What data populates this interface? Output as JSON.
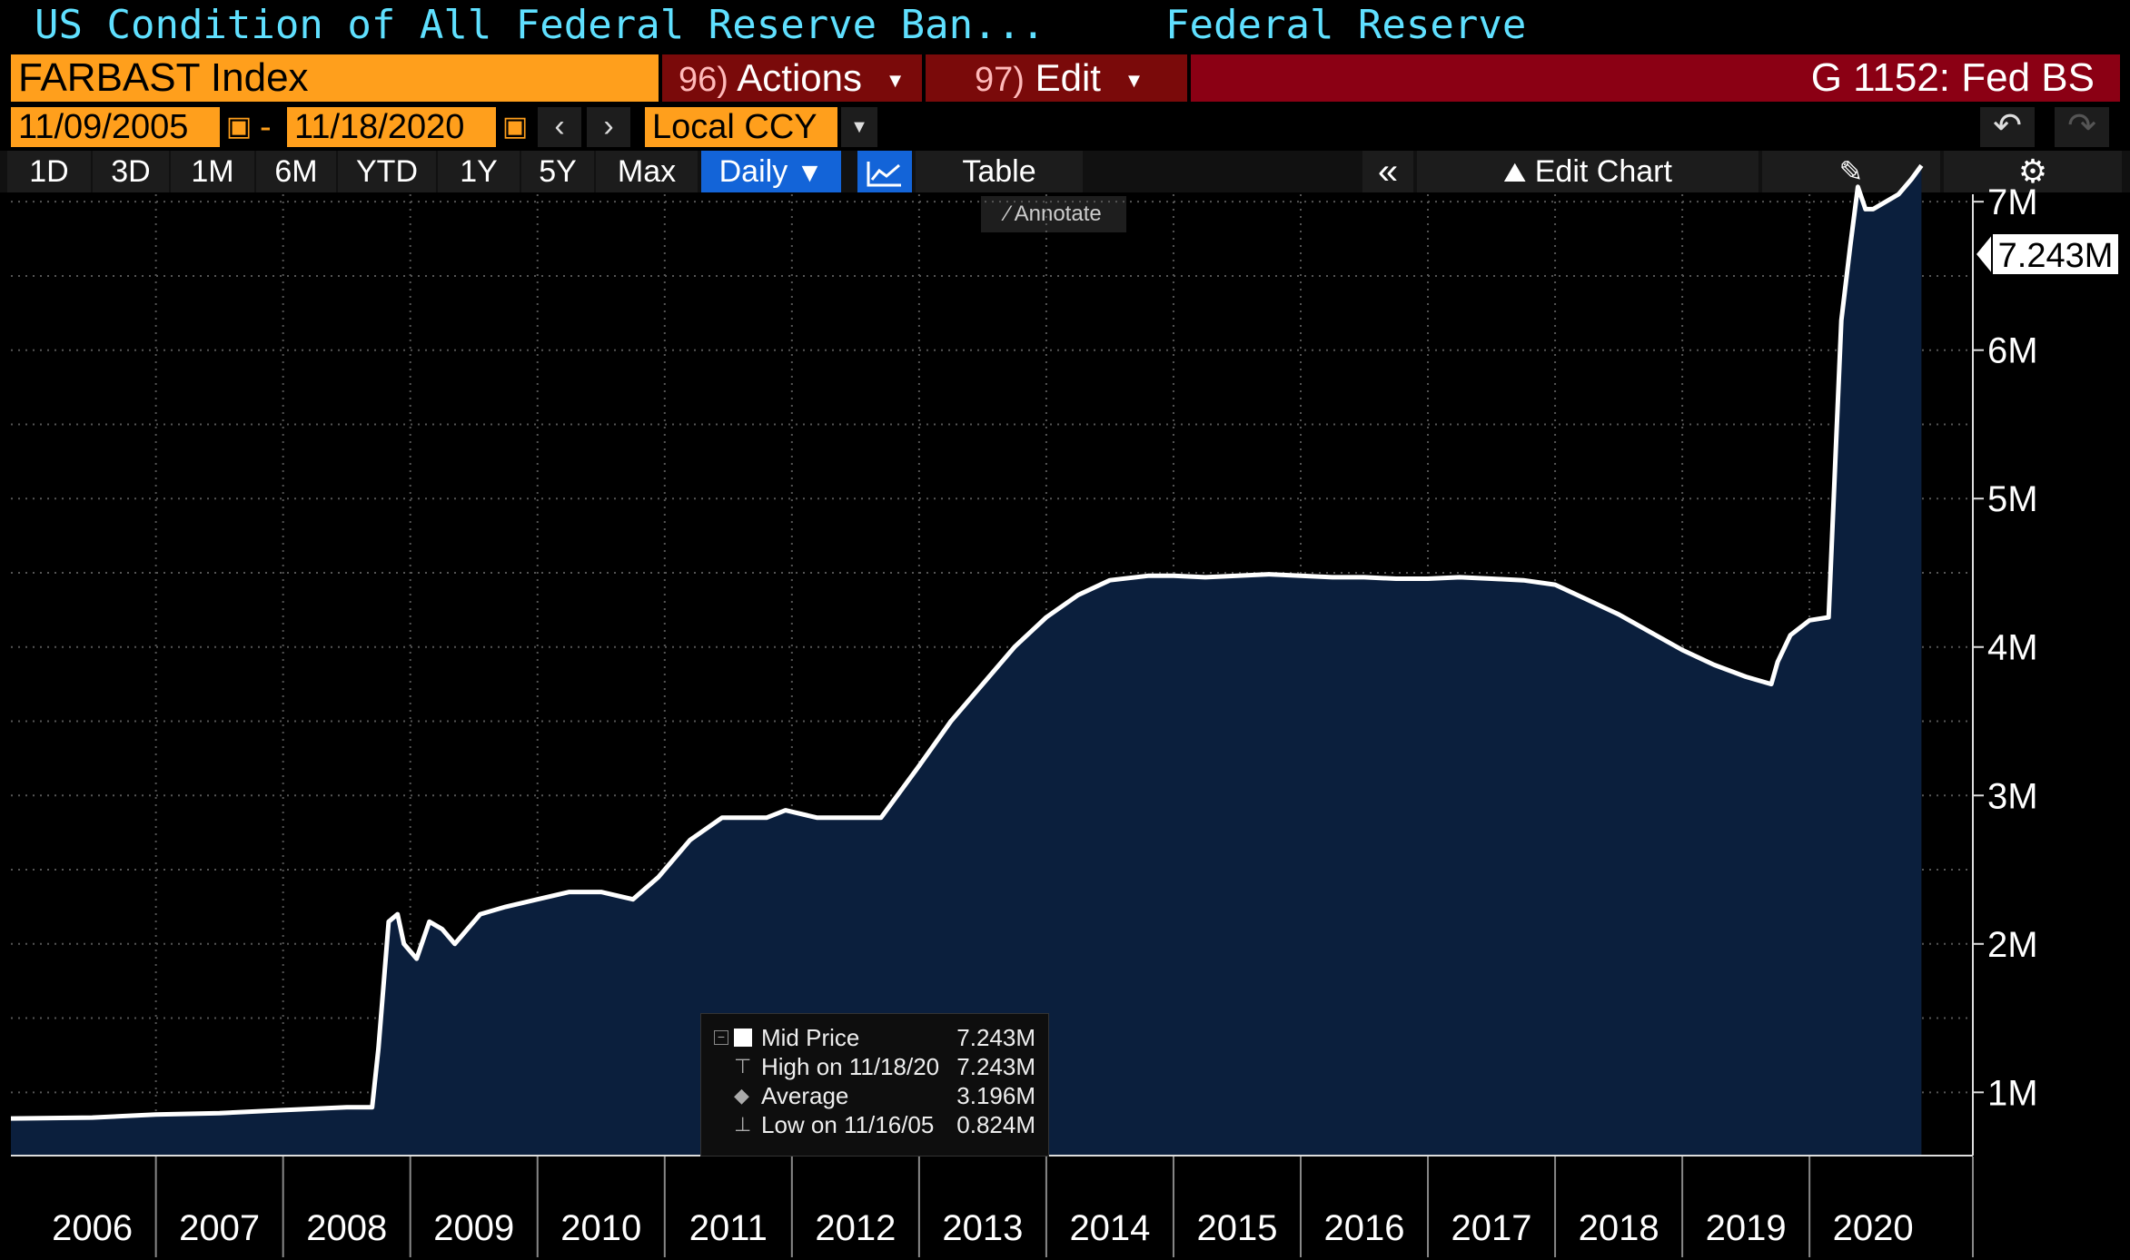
{
  "header": {
    "title": "US Condition of All Federal Reserve Ban...",
    "source": "Federal Reserve"
  },
  "ticker": {
    "security": "FARBAST Index",
    "actions_num": "96)",
    "actions_label": "Actions",
    "edit_num": "97)",
    "edit_label": "Edit",
    "page_title": "G 1152: Fed BS"
  },
  "range": {
    "start_date": "11/09/2005",
    "dash": "-",
    "end_date": "11/18/2020",
    "currency": "Local CCY"
  },
  "toolbar": {
    "periods": [
      "1D",
      "3D",
      "1M",
      "6M",
      "YTD",
      "1Y",
      "5Y",
      "Max"
    ],
    "frequency": "Daily",
    "table_label": "Table",
    "edit_chart_label": "Edit Chart",
    "annotate_label": "Annotate"
  },
  "price_label": "7.243M",
  "legend": {
    "rows": [
      {
        "key": "Mid Price",
        "value": "7.243M"
      },
      {
        "key": "High on 11/18/20",
        "value": "7.243M"
      },
      {
        "key": "Average",
        "value": "3.196M"
      },
      {
        "key": "Low on 11/16/05",
        "value": "0.824M"
      }
    ]
  },
  "colors": {
    "accent_orange": "#ff9f1c",
    "title_cyan": "#5fe0ff",
    "area_fill": "#0b1f3d",
    "line": "#ffffff",
    "active_blue": "#1364d8"
  },
  "chart_data": {
    "type": "area",
    "title": "US Condition of All Federal Reserve Ban...",
    "xlabel": "",
    "ylabel": "",
    "xlim": [
      2005.86,
      2021.27
    ],
    "ylim": [
      0.58,
      7.05
    ],
    "y_ticks": [
      1,
      2,
      3,
      4,
      5,
      6,
      7
    ],
    "y_tick_labels": [
      "1M",
      "2M",
      "3M",
      "4M",
      "5M",
      "6M",
      "7M"
    ],
    "x_tick_labels": [
      "2006",
      "2007",
      "2008",
      "2009",
      "2010",
      "2011",
      "2012",
      "2013",
      "2014",
      "2015",
      "2016",
      "2017",
      "2018",
      "2019",
      "2020"
    ],
    "grid": true,
    "series": [
      {
        "values_unit": "millions",
        "x": [
          2005.86,
          2006.5,
          2007.0,
          2007.5,
          2008.0,
          2008.5,
          2008.7,
          2008.75,
          2008.83,
          2008.9,
          2008.95,
          2009.05,
          2009.15,
          2009.25,
          2009.35,
          2009.45,
          2009.55,
          2009.75,
          2010.0,
          2010.25,
          2010.5,
          2010.75,
          2010.95,
          2011.2,
          2011.45,
          2011.7,
          2011.8,
          2011.95,
          2012.2,
          2012.45,
          2012.7,
          2013.0,
          2013.25,
          2013.5,
          2013.75,
          2014.0,
          2014.25,
          2014.5,
          2014.8,
          2015.0,
          2015.25,
          2015.5,
          2015.75,
          2016.0,
          2016.25,
          2016.5,
          2016.75,
          2017.0,
          2017.25,
          2017.5,
          2017.75,
          2018.0,
          2018.25,
          2018.5,
          2018.75,
          2019.0,
          2019.25,
          2019.5,
          2019.7,
          2019.75,
          2019.85,
          2020.0,
          2020.15,
          2020.2,
          2020.25,
          2020.32,
          2020.38,
          2020.44,
          2020.5,
          2020.6,
          2020.7,
          2020.8,
          2020.88
        ],
        "values": [
          0.824,
          0.83,
          0.85,
          0.86,
          0.88,
          0.9,
          0.9,
          1.3,
          2.15,
          2.2,
          2.0,
          1.9,
          2.15,
          2.1,
          2.0,
          2.1,
          2.2,
          2.25,
          2.3,
          2.35,
          2.35,
          2.3,
          2.45,
          2.7,
          2.85,
          2.85,
          2.85,
          2.9,
          2.85,
          2.85,
          2.85,
          3.2,
          3.5,
          3.75,
          4.0,
          4.2,
          4.35,
          4.45,
          4.48,
          4.48,
          4.47,
          4.48,
          4.49,
          4.48,
          4.47,
          4.47,
          4.46,
          4.46,
          4.47,
          4.46,
          4.45,
          4.42,
          4.32,
          4.22,
          4.1,
          3.98,
          3.88,
          3.8,
          3.75,
          3.9,
          4.08,
          4.18,
          4.2,
          5.2,
          6.2,
          6.7,
          7.1,
          6.95,
          6.95,
          7.0,
          7.05,
          7.15,
          7.243
        ]
      }
    ]
  }
}
